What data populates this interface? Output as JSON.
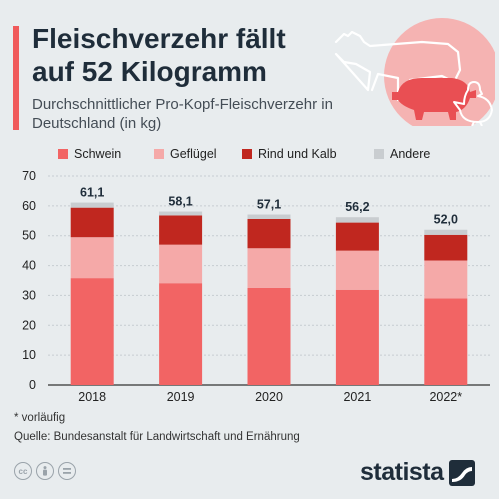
{
  "header": {
    "title": "Fleischverzehr fällt auf 52 Kilogramm",
    "subtitle": "Durchschnittlicher Pro-Kopf-Fleischverzehr in Deutschland (in kg)"
  },
  "colors": {
    "accent": "#f05a5b",
    "schwein": "#f26464",
    "gefluegel": "#f5a9a8",
    "rind": "#c0271f",
    "andere": "#c9cdd0"
  },
  "chart_data": {
    "type": "bar",
    "stacked": true,
    "categories": [
      "2018",
      "2019",
      "2020",
      "2021",
      "2022*"
    ],
    "series": [
      {
        "name": "Schwein",
        "color": "#f26464",
        "values": [
          35.8,
          34.1,
          32.5,
          31.9,
          29.0
        ]
      },
      {
        "name": "Geflügel",
        "color": "#f5a9a8",
        "values": [
          13.7,
          12.9,
          13.3,
          13.1,
          12.7
        ]
      },
      {
        "name": "Rind und Kalb",
        "color": "#c0271f",
        "values": [
          9.9,
          9.8,
          9.8,
          9.4,
          8.6
        ]
      },
      {
        "name": "Andere",
        "color": "#c9cdd0",
        "values": [
          1.7,
          1.3,
          1.5,
          1.8,
          1.7
        ]
      }
    ],
    "totals": [
      "61,1",
      "58,1",
      "57,1",
      "56,2",
      "52,0"
    ],
    "ylim": [
      0,
      70
    ],
    "yticks": [
      0,
      10,
      20,
      30,
      40,
      50,
      60,
      70
    ],
    "grid": true,
    "legend": "top"
  },
  "footer": {
    "note": "* vorläufig",
    "source": "Quelle: Bundesanstalt für Landwirtschaft und Ernährung",
    "license_icons": [
      "cc-icon",
      "by-icon",
      "nd-icon"
    ],
    "brand": "statista"
  }
}
